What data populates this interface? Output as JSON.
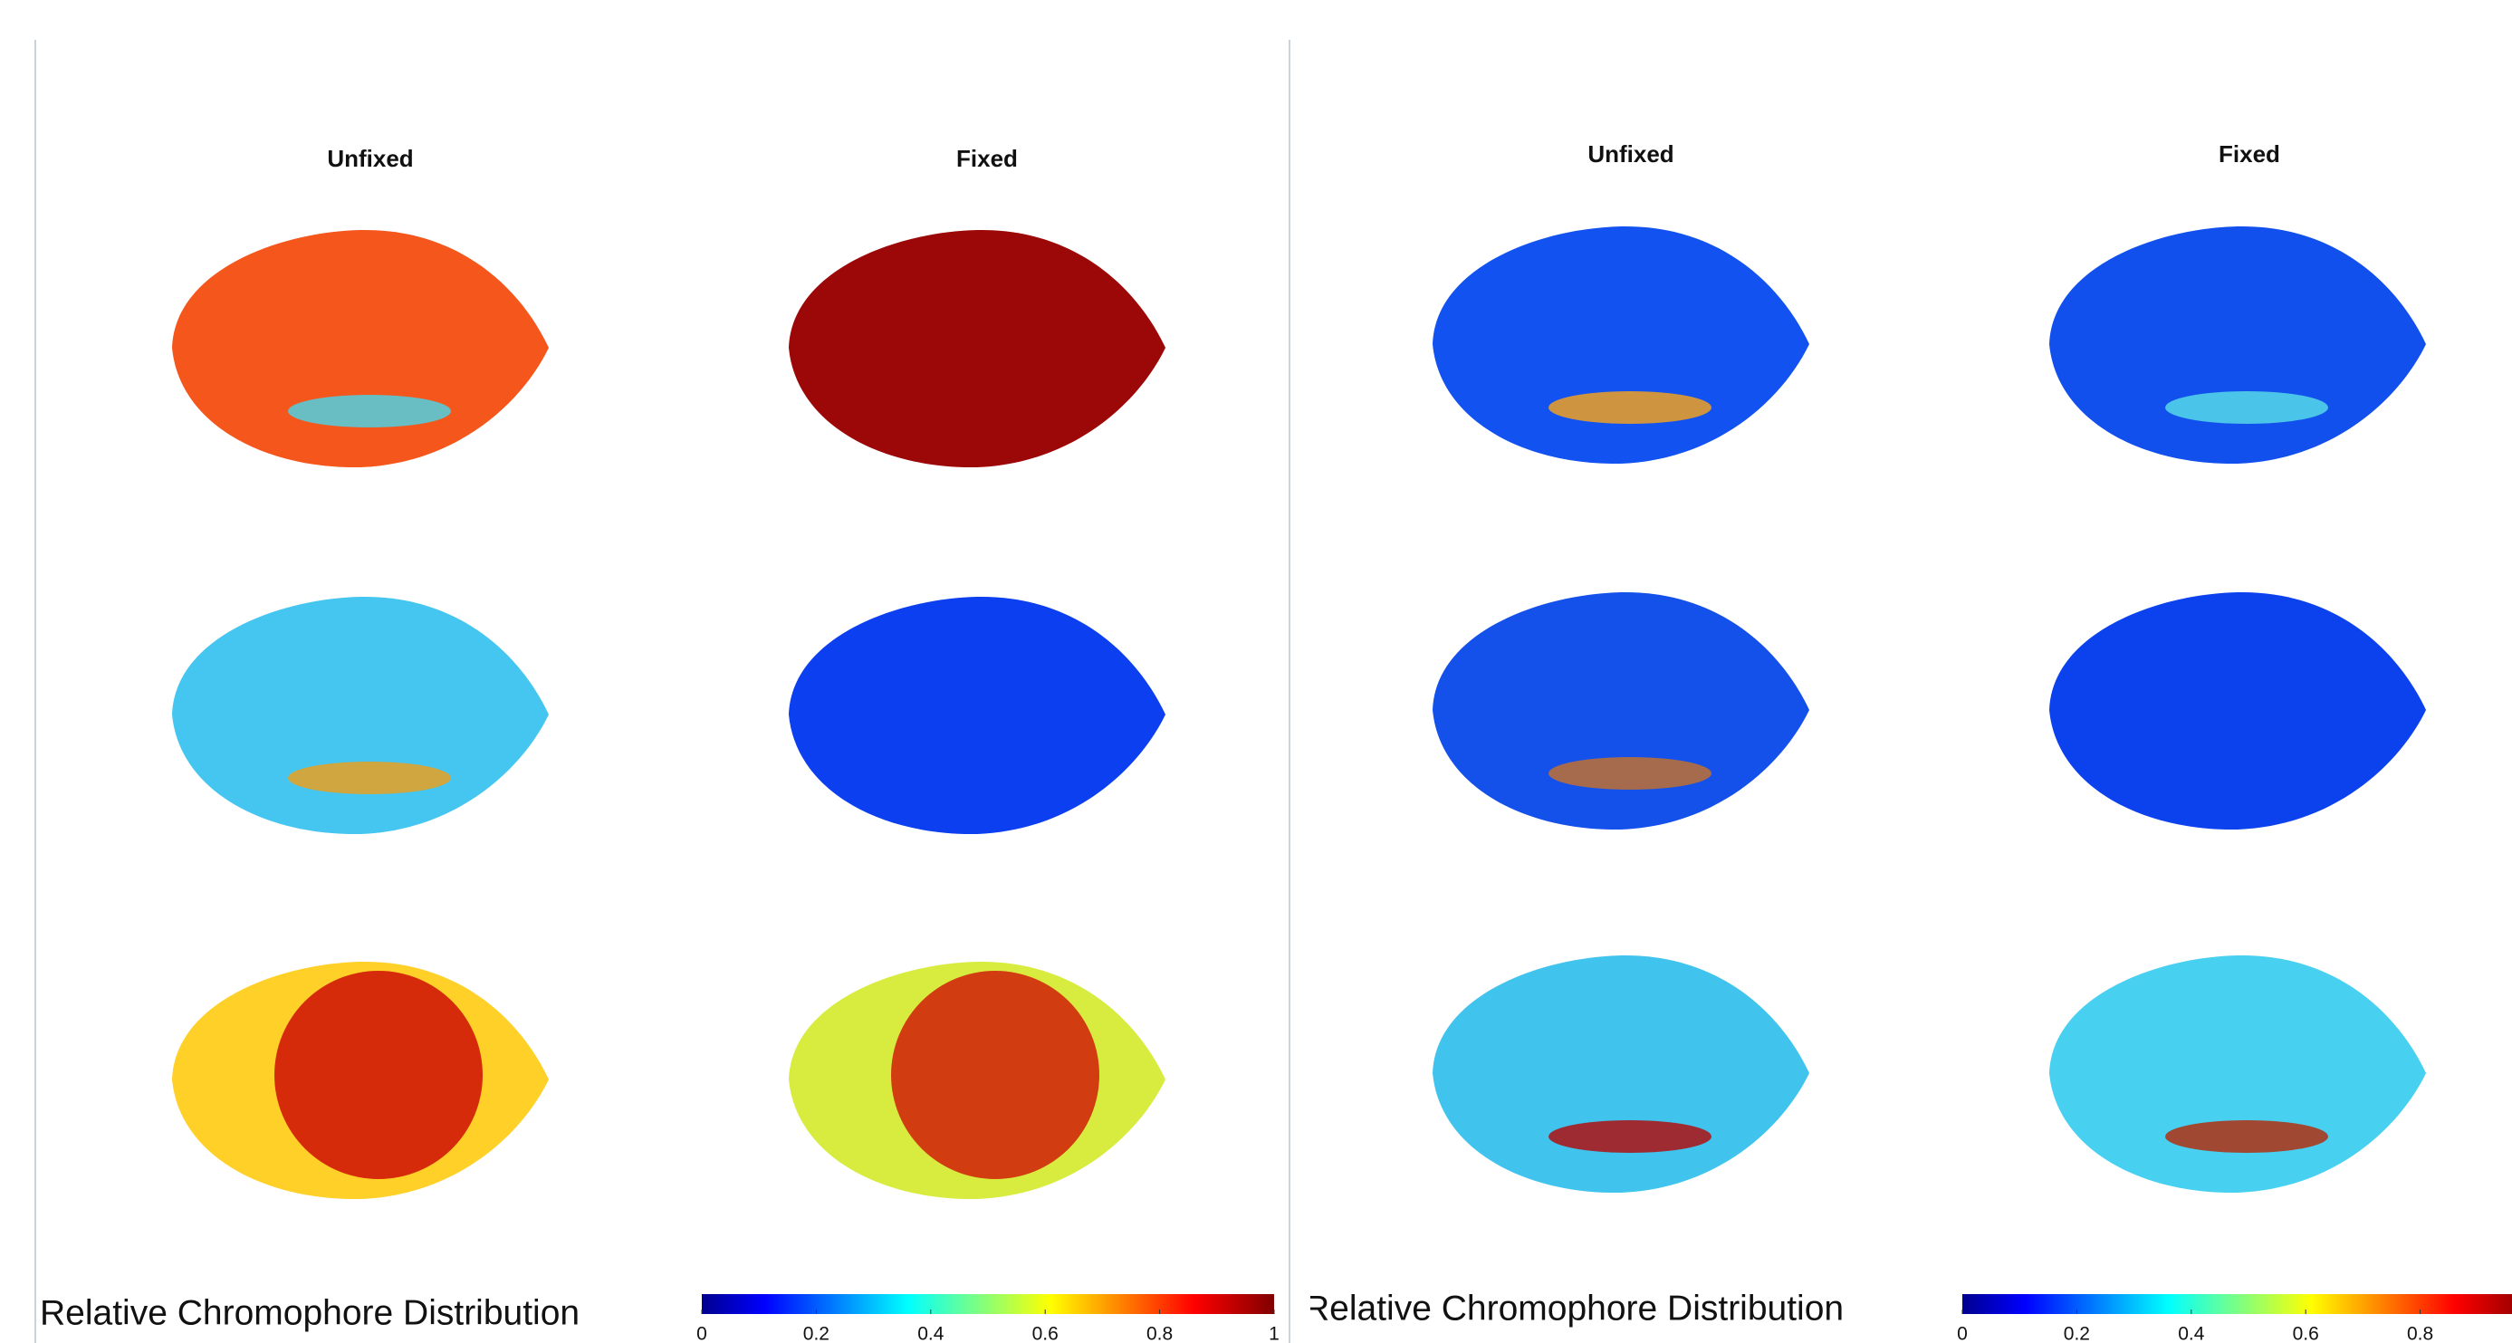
{
  "chart_data": [
    {
      "type": "heatmap",
      "column_titles": [
        "Unfixed",
        "Fixed"
      ],
      "colorbar_label": "Relative Chromophore Distribution",
      "clim": [
        0,
        1
      ],
      "cticks": [
        0,
        0.2,
        0.4,
        0.6,
        0.8,
        1
      ]
    },
    {
      "type": "heatmap",
      "column_titles": [
        "Unfixed",
        "Fixed"
      ],
      "colorbar_label": "Relative Chromophore Distribution",
      "clim": [
        0,
        1
      ],
      "cticks": [
        0,
        0.2,
        0.4,
        0.6,
        0.8
      ]
    }
  ]
}
